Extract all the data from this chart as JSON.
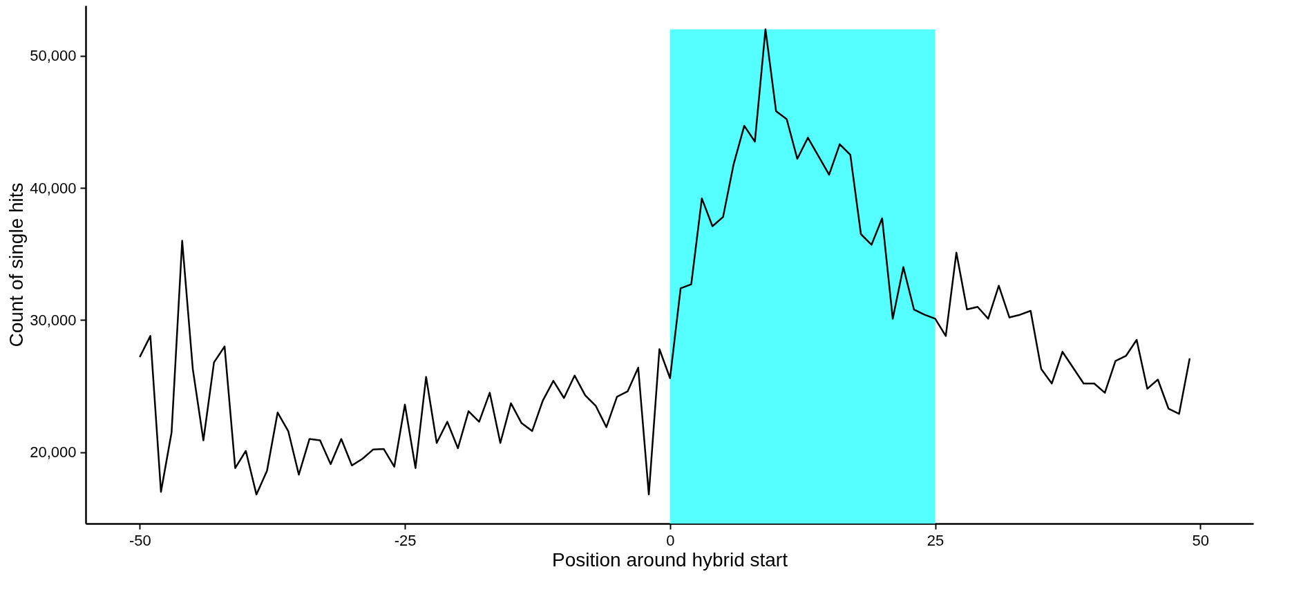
{
  "chart_data": {
    "type": "line",
    "xlabel": "Position around hybrid start",
    "ylabel": "Count of single hits",
    "x": [
      -50,
      -49,
      -48,
      -47,
      -46,
      -45,
      -44,
      -43,
      -42,
      -41,
      -40,
      -39,
      -38,
      -37,
      -36,
      -35,
      -34,
      -33,
      -32,
      -31,
      -30,
      -29,
      -28,
      -27,
      -26,
      -25,
      -24,
      -23,
      -22,
      -21,
      -20,
      -19,
      -18,
      -17,
      -16,
      -15,
      -14,
      -13,
      -12,
      -11,
      -10,
      -9,
      -8,
      -7,
      -6,
      -5,
      -4,
      -3,
      -2,
      -1,
      0,
      1,
      2,
      3,
      4,
      5,
      6,
      7,
      8,
      9,
      10,
      11,
      12,
      13,
      14,
      15,
      16,
      17,
      18,
      19,
      20,
      21,
      22,
      23,
      24,
      25,
      26,
      27,
      28,
      29,
      30,
      31,
      32,
      33,
      34,
      35,
      36,
      37,
      38,
      39,
      40,
      41,
      42,
      43,
      44,
      45,
      46,
      47,
      48,
      49
    ],
    "series": [
      {
        "color": "#000000",
        "values": [
          27200,
          28800,
          17000,
          21500,
          36000,
          26300,
          20900,
          26800,
          28000,
          18800,
          20100,
          16800,
          18600,
          23000,
          21600,
          18300,
          21000,
          20900,
          19100,
          21000,
          19000,
          19500,
          20200,
          20250,
          18900,
          23600,
          18800,
          25700,
          20700,
          22300,
          20300,
          23100,
          22300,
          24500,
          20700,
          23700,
          22200,
          21600,
          23900,
          25400,
          24100,
          25800,
          24300,
          23500,
          21900,
          24200,
          24600,
          26400,
          16800,
          27800,
          25600,
          32400,
          32700,
          39200,
          37100,
          37800,
          41800,
          44700,
          43500,
          52000,
          45800,
          45200,
          42200,
          43800,
          42400,
          41000,
          43300,
          42500,
          36500,
          35700,
          37700,
          30100,
          34000,
          30800,
          30400,
          30100,
          28800,
          35100,
          30800,
          31000,
          30100,
          32600,
          30200,
          30400,
          30700,
          26300,
          25200,
          27600,
          26400,
          25200,
          25200,
          24500,
          26900,
          27300,
          28500,
          24800,
          25500,
          23300,
          22900,
          27100
        ]
      }
    ],
    "xlim": [
      -55.1,
      55
    ],
    "xticks": [
      -50,
      {
        "value": -25,
        "label": "-25"
      },
      0,
      25,
      50
    ],
    "ylim": [
      14600,
      53800
    ],
    "yticks": [
      {
        "value": 20000,
        "label": "20,000"
      },
      {
        "value": 30000,
        "label": "30,000"
      },
      {
        "value": 40000,
        "label": "40,000"
      },
      {
        "value": 50000,
        "label": "50,000"
      }
    ],
    "bands": [
      {
        "axis": "x",
        "from": 0,
        "to": 25,
        "color": "#55ffff"
      }
    ],
    "grid": false,
    "line_style": "solid",
    "marker": "none"
  }
}
